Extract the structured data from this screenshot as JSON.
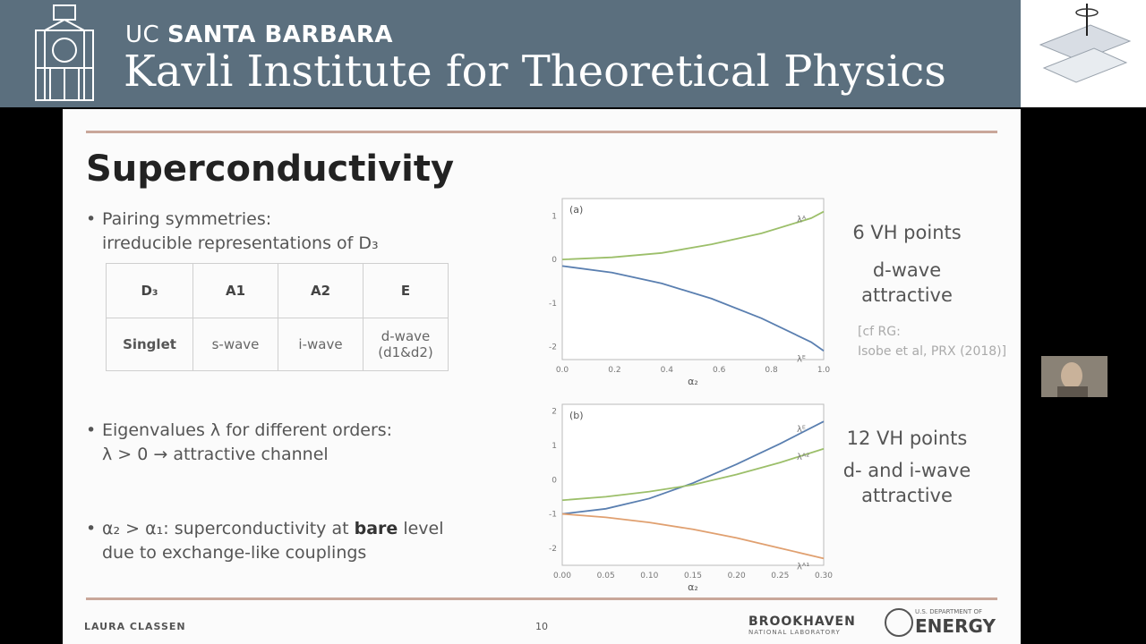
{
  "header": {
    "uc_prefix": "UC",
    "uc_name": "SANTA BARBARA",
    "institute": "Kavli Institute for Theoretical Physics"
  },
  "slide": {
    "title": "Superconductivity",
    "bullets": {
      "pairing_1": "Pairing symmetries:",
      "pairing_2": "irreducible representations of D₃",
      "eigen_1": "Eigenvalues λ for different orders:",
      "eigen_2": "λ > 0 → attractive channel",
      "bare_pre": "α₂ > α₁: superconductivity at ",
      "bare_bold": "bare",
      "bare_post": " level",
      "bare_2": "due to exchange-like couplings"
    },
    "table": {
      "headers": [
        "D₃",
        "A1",
        "A2",
        "E"
      ],
      "row_label": "Singlet",
      "cells": [
        "s-wave",
        "i-wave",
        "d-wave",
        "(d1&d2)"
      ]
    },
    "annotations": {
      "vh6_title": "6 VH points",
      "vh6_line1": "d-wave",
      "vh6_line2": "attractive",
      "cite_1": "[cf RG:",
      "cite_2": "Isobe et al, PRX (2018)]",
      "vh12_title": "12 VH points",
      "vh12_line1": "d- and i-wave",
      "vh12_line2": "attractive"
    },
    "footer": {
      "author": "LAURA CLASSEN",
      "page": "10",
      "lab_name": "BROOKHAVEN",
      "lab_sub": "NATIONAL LABORATORY",
      "doe_top": "U.S. DEPARTMENT OF",
      "doe_name": "ENERGY"
    }
  },
  "chart_data": [
    {
      "type": "line",
      "panel": "(a)",
      "xlabel": "α₂",
      "x_ticks": [
        "0.0",
        "0.2",
        "0.4",
        "0.6",
        "0.8",
        "1.0"
      ],
      "y_ticks": [
        "1",
        "0",
        "-1",
        "-2"
      ],
      "xlim": [
        0,
        1.05
      ],
      "ylim": [
        -2.3,
        1.4
      ],
      "series": [
        {
          "name": "λᴬ",
          "color": "#9cbf6a",
          "x": [
            0,
            0.2,
            0.4,
            0.6,
            0.8,
            1.0,
            1.05
          ],
          "y": [
            0,
            0.05,
            0.15,
            0.35,
            0.6,
            0.95,
            1.1
          ]
        },
        {
          "name": "λᴱ",
          "color": "#5a7fb0",
          "x": [
            0,
            0.2,
            0.4,
            0.6,
            0.8,
            1.0,
            1.05
          ],
          "y": [
            -0.15,
            -0.3,
            -0.55,
            -0.9,
            -1.35,
            -1.9,
            -2.1
          ]
        }
      ]
    },
    {
      "type": "line",
      "panel": "(b)",
      "xlabel": "α₂",
      "x_ticks": [
        "0.00",
        "0.05",
        "0.10",
        "0.15",
        "0.20",
        "0.25",
        "0.30"
      ],
      "y_ticks": [
        "2",
        "1",
        "0",
        "-1",
        "-2"
      ],
      "xlim": [
        0,
        0.3
      ],
      "ylim": [
        -2.5,
        2.2
      ],
      "series": [
        {
          "name": "λᴱ",
          "color": "#5a7fb0",
          "x": [
            0,
            0.05,
            0.1,
            0.15,
            0.2,
            0.25,
            0.3
          ],
          "y": [
            -1,
            -0.85,
            -0.55,
            -0.1,
            0.45,
            1.05,
            1.7
          ]
        },
        {
          "name": "λᴬ²",
          "color": "#9cbf6a",
          "x": [
            0,
            0.05,
            0.1,
            0.15,
            0.2,
            0.25,
            0.3
          ],
          "y": [
            -0.6,
            -0.5,
            -0.35,
            -0.15,
            0.15,
            0.5,
            0.9
          ]
        },
        {
          "name": "λᴬ¹",
          "color": "#e0a070",
          "x": [
            0,
            0.05,
            0.1,
            0.15,
            0.2,
            0.25,
            0.3
          ],
          "y": [
            -1,
            -1.1,
            -1.25,
            -1.45,
            -1.7,
            -2.0,
            -2.3
          ]
        }
      ]
    }
  ]
}
